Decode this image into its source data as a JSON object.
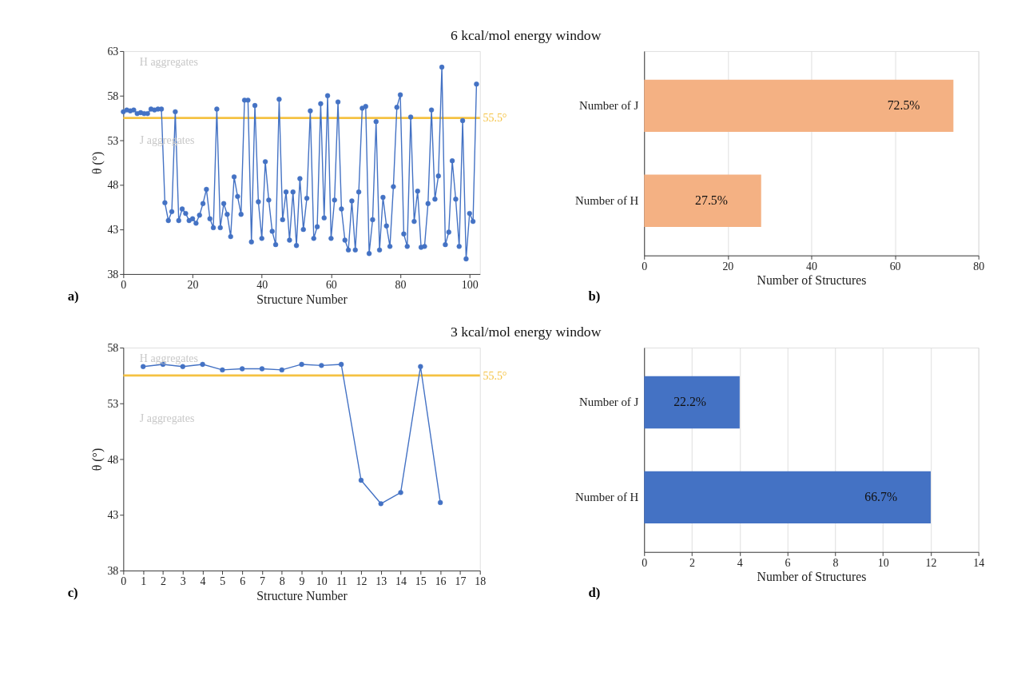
{
  "chart_data": [
    {
      "type": "line",
      "title": "6 kcal/mol energy window",
      "xlabel": "Structure Number",
      "ylabel": "θ (°)",
      "x": [
        0,
        1,
        2,
        3,
        4,
        5,
        6,
        7,
        8,
        9,
        10,
        11,
        12,
        13,
        14,
        15,
        16,
        17,
        18,
        19,
        20,
        21,
        22,
        23,
        24,
        25,
        26,
        27,
        28,
        29,
        30,
        31,
        32,
        33,
        34,
        35,
        36,
        37,
        38,
        39,
        40,
        41,
        42,
        43,
        44,
        45,
        46,
        47,
        48,
        49,
        50,
        51,
        52,
        53,
        54,
        55,
        56,
        57,
        58,
        59,
        60,
        61,
        62,
        63,
        64,
        65,
        66,
        67,
        68,
        69,
        70,
        71,
        72,
        73,
        74,
        75,
        76,
        77,
        78,
        79,
        80,
        81,
        82,
        83,
        84,
        85,
        86,
        87,
        88,
        89,
        90,
        91,
        92,
        93,
        94,
        95,
        96,
        97,
        98,
        99,
        100,
        101,
        102
      ],
      "series": [
        {
          "color": "#4472c4",
          "values": [
            56.2,
            56.4,
            56.3,
            56.4,
            56.0,
            56.1,
            56.0,
            56.0,
            56.5,
            56.4,
            56.5,
            56.5,
            46.0,
            44.0,
            45.0,
            56.2,
            44.0,
            45.3,
            44.8,
            44.0,
            44.2,
            43.7,
            44.6,
            45.9,
            47.5,
            44.2,
            43.2,
            56.5,
            43.2,
            45.9,
            44.7,
            42.2,
            48.9,
            46.7,
            44.7,
            57.5,
            57.5,
            41.6,
            56.9,
            46.1,
            42.0,
            50.6,
            46.3,
            42.8,
            41.3,
            57.6,
            44.1,
            47.2,
            41.8,
            47.2,
            41.2,
            48.7,
            43.0,
            46.5,
            56.3,
            42.0,
            43.3,
            57.1,
            44.3,
            58.0,
            42.0,
            46.3,
            57.3,
            45.3,
            41.8,
            40.7,
            46.2,
            40.7,
            47.2,
            56.6,
            56.8,
            40.3,
            44.1,
            55.1,
            40.7,
            46.6,
            43.4,
            41.1,
            47.8,
            56.7,
            58.1,
            42.5,
            41.1,
            55.6,
            43.9,
            47.3,
            41.0,
            41.1,
            45.9,
            56.4,
            46.4,
            49.0,
            61.2,
            41.3,
            42.7,
            50.7,
            46.4,
            41.1,
            55.2,
            39.7,
            44.8,
            43.9,
            59.3
          ]
        }
      ],
      "xlim": [
        0,
        103
      ],
      "xticks": [
        0,
        20,
        40,
        60,
        80,
        100
      ],
      "ylim": [
        38,
        63
      ],
      "yticks": [
        38,
        43,
        48,
        53,
        58,
        63
      ],
      "marker": "circle",
      "grid": false,
      "ref_lines": [
        {
          "axis": "y",
          "value": 55.5,
          "label": "55.5°",
          "color": "#f5c242"
        }
      ],
      "annotations": [
        "H aggregates",
        "J aggregates",
        "a)"
      ]
    },
    {
      "type": "bar",
      "orientation": "horizontal",
      "xlabel": "Number of Structures",
      "categories": [
        "Number of J",
        "Number of H"
      ],
      "values": [
        74,
        28
      ],
      "colors": [
        "#f4b183",
        "#f4b183"
      ],
      "xlim": [
        0,
        80
      ],
      "xticks": [
        0,
        20,
        40,
        60,
        80
      ],
      "grid": "x",
      "annotations": [
        {
          "text": "72.5%",
          "x": 74,
          "y": "Number of J"
        },
        {
          "text": "27.5%",
          "x": 28,
          "y": "Number of H"
        },
        "b)"
      ]
    },
    {
      "type": "line",
      "title": "3 kcal/mol energy window",
      "xlabel": "Structure Number",
      "ylabel": "θ (°)",
      "x": [
        1,
        2,
        3,
        4,
        5,
        6,
        7,
        8,
        9,
        10,
        11,
        12,
        13,
        14,
        15,
        16
      ],
      "series": [
        {
          "color": "#4472c4",
          "values": [
            56.3,
            56.5,
            56.3,
            56.5,
            56.0,
            56.1,
            56.1,
            56.0,
            56.5,
            56.4,
            56.5,
            46.1,
            44.0,
            45.0,
            56.3,
            44.1
          ]
        }
      ],
      "xlim": [
        0,
        18
      ],
      "xticks": [
        0,
        1,
        2,
        3,
        4,
        5,
        6,
        7,
        8,
        9,
        10,
        11,
        12,
        13,
        14,
        15,
        16,
        17,
        18
      ],
      "ylim": [
        38,
        58
      ],
      "yticks": [
        38,
        43,
        48,
        53,
        58
      ],
      "marker": "circle",
      "grid": false,
      "ref_lines": [
        {
          "axis": "y",
          "value": 55.5,
          "label": "55.5°",
          "color": "#f5c242"
        }
      ],
      "annotations": [
        "H aggregates",
        "J aggregates",
        "c)"
      ]
    },
    {
      "type": "bar",
      "orientation": "horizontal",
      "xlabel": "Number of Structures",
      "categories": [
        "Number of J",
        "Number of H"
      ],
      "values": [
        4,
        12
      ],
      "colors": [
        "#4472c4",
        "#4472c4"
      ],
      "xlim": [
        0,
        14
      ],
      "xticks": [
        0,
        2,
        4,
        6,
        8,
        10,
        12,
        14
      ],
      "grid": "x",
      "annotations": [
        {
          "text": "22.2%",
          "x": 4,
          "y": "Number of J"
        },
        {
          "text": "66.7%",
          "x": 12,
          "y": "Number of H"
        },
        "d)"
      ]
    }
  ]
}
